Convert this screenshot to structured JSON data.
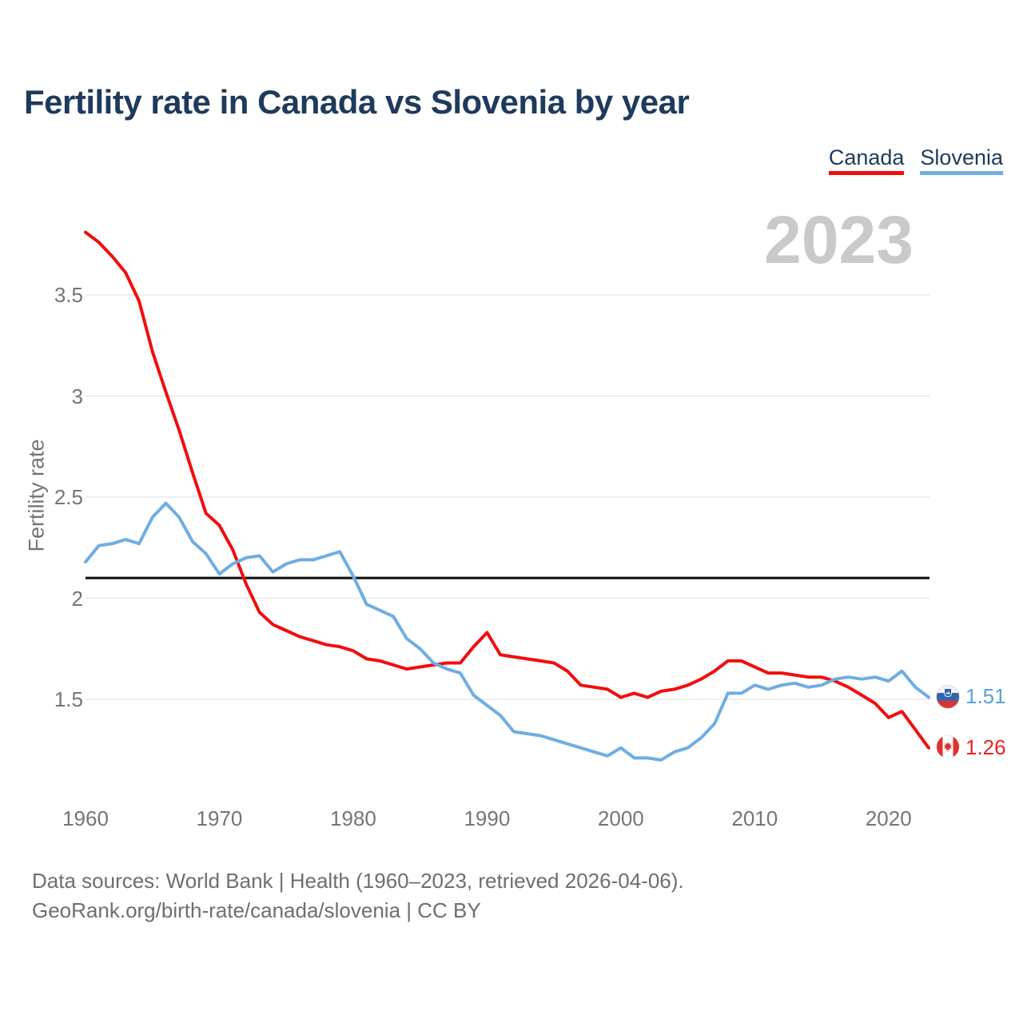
{
  "header": {
    "title": "Fertility rate in Canada vs Slovenia by year"
  },
  "legend": {
    "items": [
      {
        "label": "Canada",
        "color": "#f20d0d"
      },
      {
        "label": "Slovenia",
        "color": "#6fade2"
      }
    ]
  },
  "watermark": "2023",
  "end_labels": {
    "slovenia": {
      "value": "1.51",
      "icon": "slovenia-flag"
    },
    "canada": {
      "value": "1.26",
      "icon": "canada-flag"
    }
  },
  "footer": {
    "line1": "Data sources: World Bank | Health (1960–2023, retrieved 2026-04-06).",
    "line2": "GeoRank.org/birth-rate/canada/slovenia | CC BY"
  },
  "colors": {
    "canada_line": "#f20d0d",
    "slovenia_line": "#6fade2",
    "title_navy": "#1e3a5c",
    "axis_gray": "#757575",
    "watermark_gray": "#c9c9c9",
    "grid_gray": "#e8e8e8",
    "reference_black": "#141414"
  },
  "chart_data": {
    "type": "line",
    "title": "Fertility rate in Canada vs Slovenia by year",
    "xlabel": "",
    "ylabel": "Fertility rate",
    "x_start": 1960,
    "x_end": 2023,
    "xticks": [
      1960,
      1970,
      1980,
      1990,
      2000,
      2010,
      2020
    ],
    "xtick_labels": [
      "1960",
      "1970",
      "1980",
      "1990",
      "2000",
      "2010",
      "2020"
    ],
    "yticks": [
      1.5,
      2,
      2.5,
      3,
      3.5
    ],
    "ytick_labels": [
      "1.5",
      "2",
      "2.5",
      "3",
      "3.5"
    ],
    "ylim": [
      1.05,
      3.95
    ],
    "grid": "horizontal-only",
    "legend_position": "top-right",
    "reference_line": {
      "value": 2.1,
      "color": "#141414"
    },
    "series": [
      {
        "name": "Canada",
        "color": "#f20d0d",
        "end_value": 1.26,
        "values": [
          3.81,
          3.76,
          3.69,
          3.61,
          3.47,
          3.22,
          3.02,
          2.83,
          2.62,
          2.42,
          2.36,
          2.24,
          2.07,
          1.93,
          1.87,
          1.84,
          1.81,
          1.79,
          1.77,
          1.76,
          1.74,
          1.7,
          1.69,
          1.67,
          1.65,
          1.66,
          1.67,
          1.68,
          1.68,
          1.76,
          1.83,
          1.72,
          1.71,
          1.7,
          1.69,
          1.68,
          1.64,
          1.57,
          1.56,
          1.55,
          1.51,
          1.53,
          1.51,
          1.54,
          1.55,
          1.57,
          1.6,
          1.64,
          1.69,
          1.69,
          1.66,
          1.63,
          1.63,
          1.62,
          1.61,
          1.61,
          1.59,
          1.56,
          1.52,
          1.48,
          1.41,
          1.44,
          1.35,
          1.26
        ]
      },
      {
        "name": "Slovenia",
        "color": "#6fade2",
        "end_value": 1.51,
        "values": [
          2.18,
          2.26,
          2.27,
          2.29,
          2.27,
          2.4,
          2.47,
          2.4,
          2.28,
          2.22,
          2.12,
          2.17,
          2.2,
          2.21,
          2.13,
          2.17,
          2.19,
          2.19,
          2.21,
          2.23,
          2.11,
          1.97,
          1.94,
          1.91,
          1.8,
          1.75,
          1.68,
          1.65,
          1.63,
          1.52,
          1.47,
          1.42,
          1.34,
          1.33,
          1.32,
          1.3,
          1.28,
          1.26,
          1.24,
          1.22,
          1.26,
          1.21,
          1.21,
          1.2,
          1.24,
          1.26,
          1.31,
          1.38,
          1.53,
          1.53,
          1.57,
          1.55,
          1.57,
          1.58,
          1.56,
          1.57,
          1.6,
          1.61,
          1.6,
          1.61,
          1.59,
          1.64,
          1.56,
          1.51
        ]
      }
    ]
  }
}
